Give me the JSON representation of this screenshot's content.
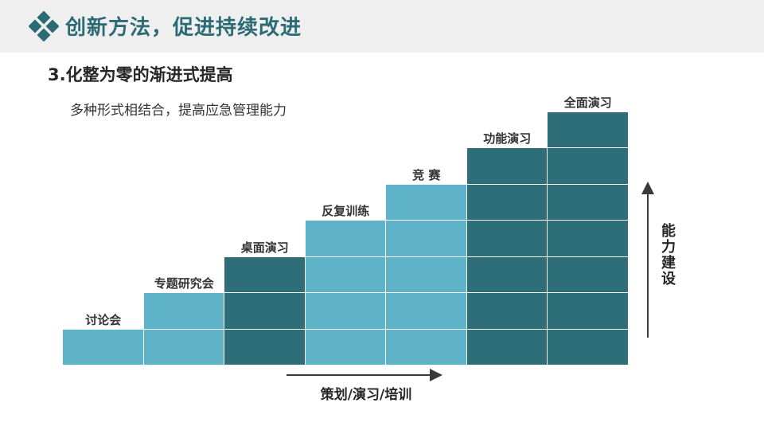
{
  "header": {
    "title": "创新方法，促进持续改进",
    "logo_icon": "diamond-logo-icon",
    "background_color": "#efefef",
    "title_color": "#2b6b74"
  },
  "section": {
    "subtitle": "3.化整为零的渐进式提高",
    "description": "多种形式相结合，提高应急管理能力"
  },
  "staircase": {
    "steps": [
      {
        "label": "讨论会",
        "level": 1,
        "color": "#5eb3c9"
      },
      {
        "label": "专题研究会",
        "level": 2,
        "color": "#5eb3c9"
      },
      {
        "label": "桌面演习",
        "level": 3,
        "color": "#2e6e78"
      },
      {
        "label": "反复训练",
        "level": 4,
        "color": "#5eb3c9"
      },
      {
        "label": "竞 赛",
        "level": 5,
        "color": "#5eb3c9"
      },
      {
        "label": "功能演习",
        "level": 6,
        "color": "#2e6e78"
      },
      {
        "label": "全面演习",
        "level": 7,
        "color": "#2e6e78"
      }
    ],
    "x_axis_label": "策划/演习/培训",
    "y_axis_label": "能\n力\n建\n设"
  }
}
